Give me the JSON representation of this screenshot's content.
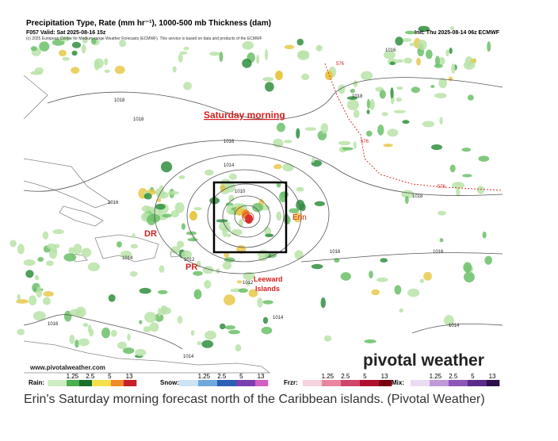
{
  "header": {
    "title": "Precipitation Type, Rate (mm hr⁻¹), 1000-500 mb Thickness (dam)",
    "valid": "F057 Valid: Sat 2025-08-16 15z",
    "init": "Init: Thu 2025-08-14 06z ECMWF",
    "copyright": "(c) 2025 European Centre for Medium-range Weather Forecasts (ECMWF). This service is based on data and products of the ECMWF"
  },
  "map": {
    "annotations": [
      "Saturday morning",
      "DR",
      "PR",
      "Erin",
      "Leeward",
      "Islands"
    ],
    "isobar_labels": [
      "1018",
      "1018",
      "1016",
      "1014",
      "1010",
      "1012",
      "1012",
      "1016",
      "1018",
      "1016",
      "1014",
      "1014",
      "1016",
      "1014",
      "1016",
      "1016",
      "1018",
      "1014"
    ],
    "thickness_labels": [
      "576",
      "576",
      "576"
    ],
    "watermark": "www.pivotalweather.com",
    "logo": "pivotal weather"
  },
  "legend": [
    {
      "label": "Rain:",
      "ticks": [
        "1.25",
        "2.5",
        "5",
        "13"
      ]
    },
    {
      "label": "Snow:",
      "ticks": [
        "1.25",
        "2.5",
        "5",
        "13"
      ]
    },
    {
      "label": "Frzr:",
      "ticks": [
        "1.25",
        "2.5",
        "5",
        "13"
      ]
    },
    {
      "label": "Mix:",
      "ticks": [
        "1.25",
        "2.5",
        "5",
        "13"
      ]
    }
  ],
  "caption": "Erin's Saturday morning forecast north of the Caribbean islands. (Pivotal Weather)"
}
